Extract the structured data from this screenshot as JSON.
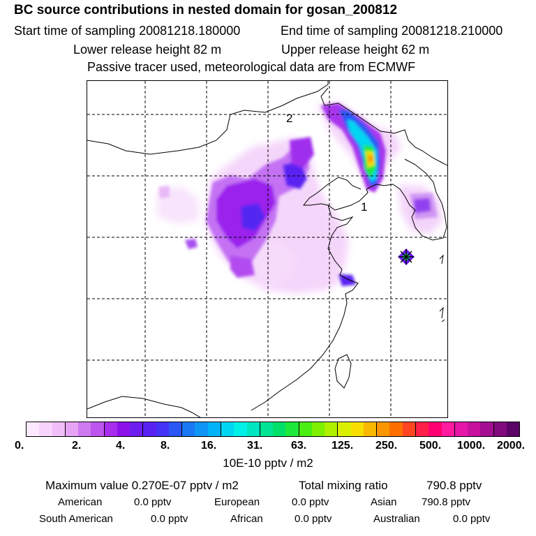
{
  "header": {
    "title": "BC  source contributions in nested domain for gosan_200812",
    "start_label": "Start time of sampling 20081218.180000",
    "end_label": "End time of sampling 20081218.210000",
    "lower_release": "Lower release height   82 m",
    "upper_release": "Upper release height   62 m",
    "tracer_note": "Passive tracer used, meteorological data are from ECMWF"
  },
  "map": {
    "labels": {
      "label_2": "2",
      "label_1": "1"
    },
    "receptor_marker": "star-marker"
  },
  "colorbar": {
    "colors": [
      "#fde9ff",
      "#f8d4fc",
      "#f1bdf9",
      "#e7a3f5",
      "#cf7af1",
      "#bd55ef",
      "#a82ded",
      "#8d12ea",
      "#6f1ef0",
      "#5a22f2",
      "#4433f4",
      "#2c57f4",
      "#1a78f4",
      "#0f95f4",
      "#00b3f7",
      "#00d6f2",
      "#00f0e8",
      "#00e6c0",
      "#00e494",
      "#00e068",
      "#1ee83a",
      "#49ef12",
      "#7ff000",
      "#aef000",
      "#dbf000",
      "#f7de00",
      "#f9b800",
      "#fb9600",
      "#fd7000",
      "#ff4522",
      "#ff1f48",
      "#ff0070",
      "#ff1aa0",
      "#e617a8",
      "#c7129e",
      "#a40e90",
      "#800a7e",
      "#5a0566"
    ],
    "ticks": [
      "0.",
      "2.",
      "4.",
      "8.",
      "16.",
      "31.",
      "63.",
      "125.",
      "250.",
      "500.",
      "1000.",
      "2000."
    ],
    "units": "10E-10 pptv / m2"
  },
  "summary": {
    "max_label": "Maximum value  0.270E-07 pptv / m2",
    "total_label": "Total mixing ratio",
    "total_value": "790.8 pptv",
    "regions": [
      {
        "name": "American",
        "value": "0.0 pptv"
      },
      {
        "name": "European",
        "value": "0.0 pptv"
      },
      {
        "name": "Asian",
        "value": "790.8 pptv"
      },
      {
        "name": "South American",
        "value": "0.0 pptv"
      },
      {
        "name": "African",
        "value": "0.0 pptv"
      },
      {
        "name": "Australian",
        "value": "0.0 pptv"
      }
    ]
  }
}
